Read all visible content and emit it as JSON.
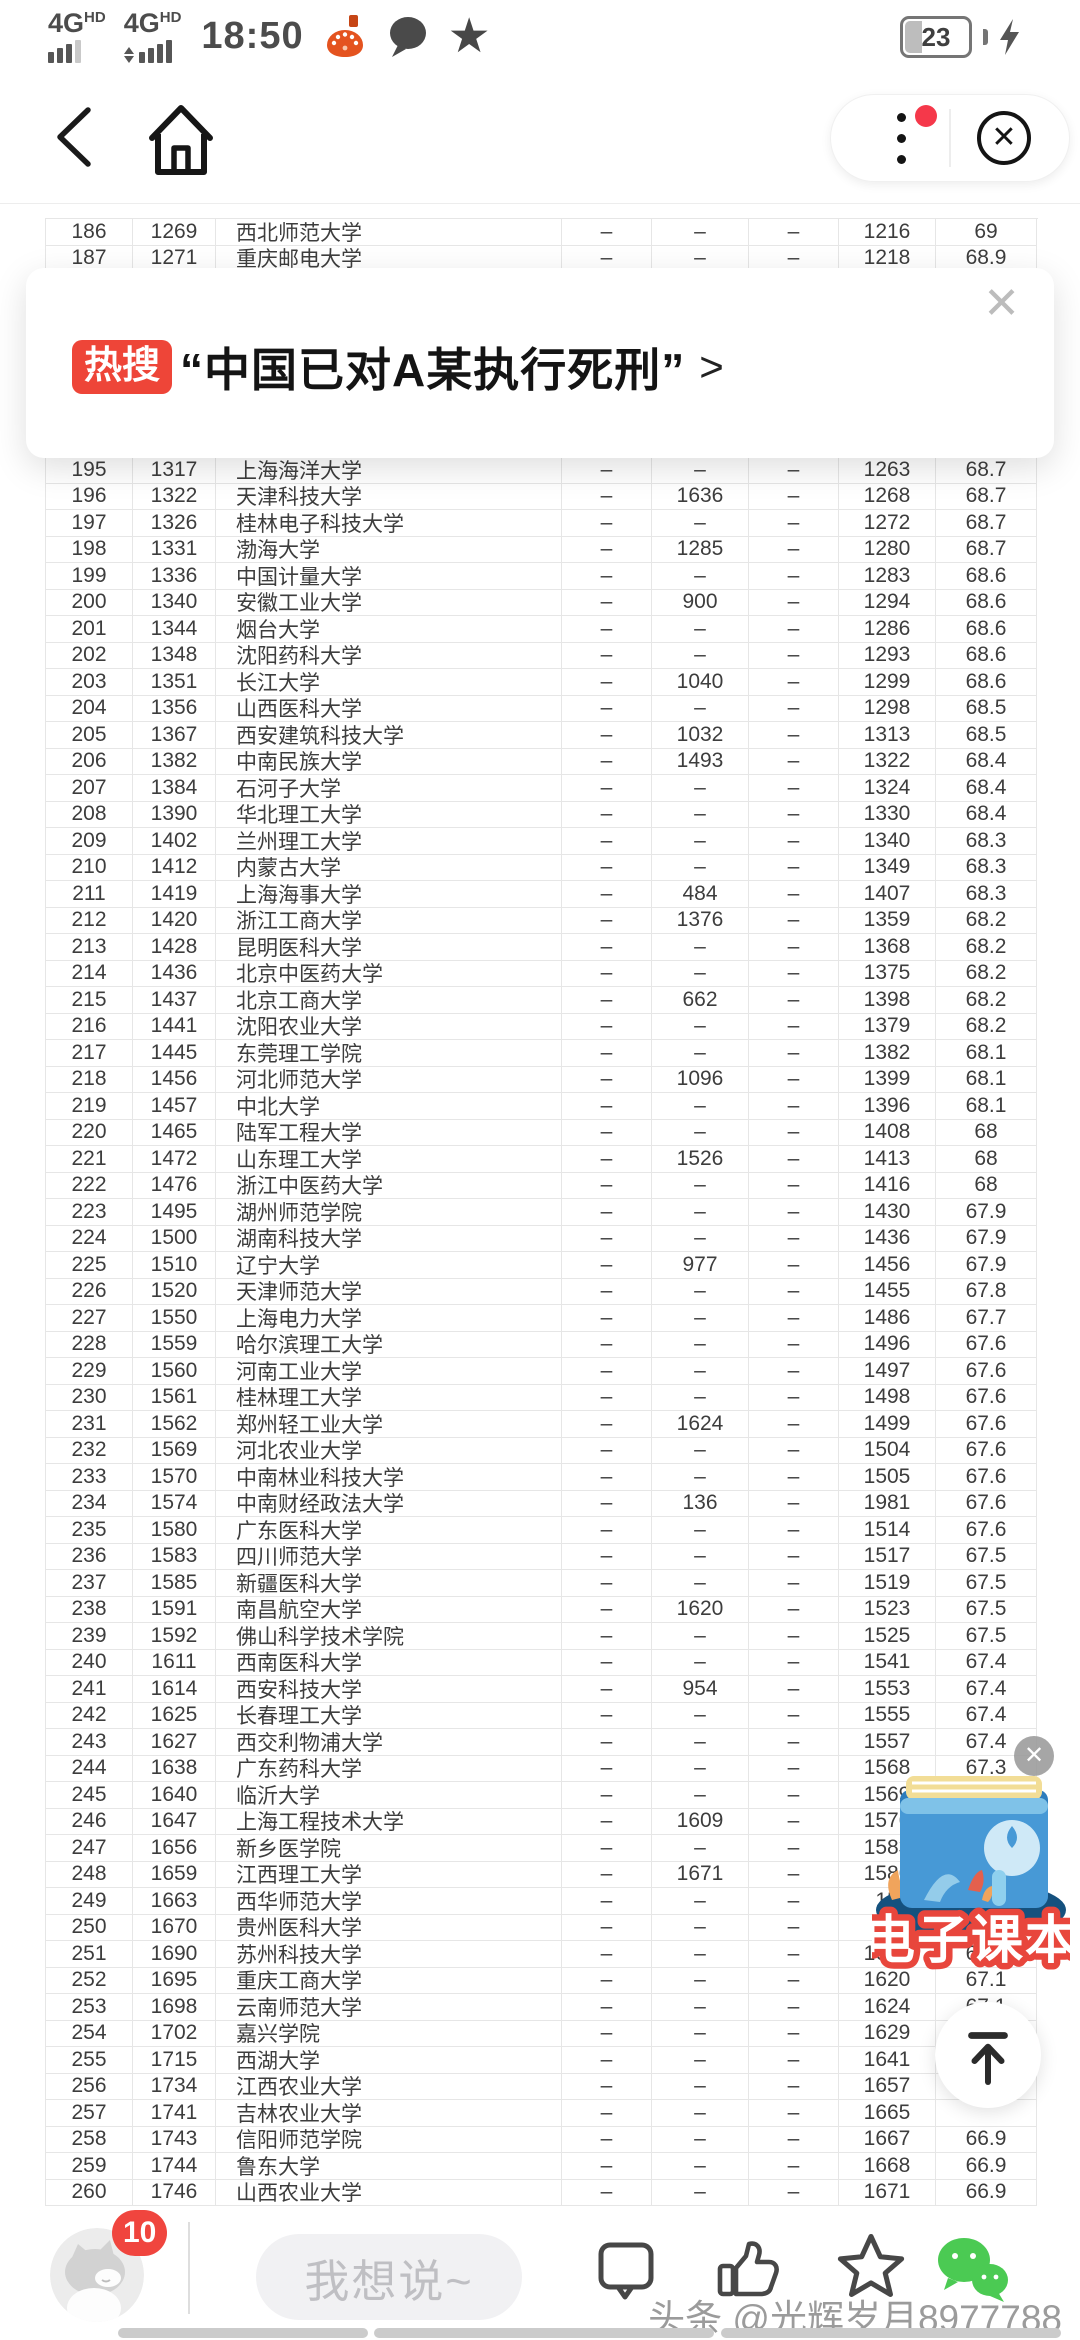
{
  "status_bar": {
    "network1": {
      "label": "4G",
      "sub": "HD"
    },
    "network2": {
      "label": "4G",
      "sub": "HD"
    },
    "time": "18:50",
    "battery_percent": "23"
  },
  "icons": {
    "banner_close": "✕",
    "sticker_close": "✕",
    "pill_close": "✕",
    "star_filled": "★"
  },
  "hot_banner": {
    "badge": "热搜",
    "headline": "“中国已对A某执行死刑”",
    "arrow": ">"
  },
  "sticker": {
    "label": "电子课本"
  },
  "bottom_bar": {
    "badge_count": "10",
    "input_placeholder": "我想说~",
    "watermark": "头条 @光辉岁月8977788"
  },
  "table": {
    "rows_top": [
      [
        "186",
        "1269",
        "西北师范大学",
        "–",
        "–",
        "–",
        "1216",
        "69"
      ],
      [
        "187",
        "1271",
        "重庆邮电大学",
        "–",
        "–",
        "–",
        "1218",
        "68.9"
      ]
    ],
    "rows": [
      [
        "195",
        "1317",
        "上海海洋大学",
        "–",
        "–",
        "–",
        "1263",
        "68.7"
      ],
      [
        "196",
        "1322",
        "天津科技大学",
        "–",
        "1636",
        "–",
        "1268",
        "68.7"
      ],
      [
        "197",
        "1326",
        "桂林电子科技大学",
        "–",
        "–",
        "–",
        "1272",
        "68.7"
      ],
      [
        "198",
        "1331",
        "渤海大学",
        "–",
        "1285",
        "–",
        "1280",
        "68.7"
      ],
      [
        "199",
        "1336",
        "中国计量大学",
        "–",
        "–",
        "–",
        "1283",
        "68.6"
      ],
      [
        "200",
        "1340",
        "安徽工业大学",
        "–",
        "900",
        "–",
        "1294",
        "68.6"
      ],
      [
        "201",
        "1344",
        "烟台大学",
        "–",
        "–",
        "–",
        "1286",
        "68.6"
      ],
      [
        "202",
        "1348",
        "沈阳药科大学",
        "–",
        "–",
        "–",
        "1293",
        "68.6"
      ],
      [
        "203",
        "1351",
        "长江大学",
        "–",
        "1040",
        "–",
        "1299",
        "68.6"
      ],
      [
        "204",
        "1356",
        "山西医科大学",
        "–",
        "–",
        "–",
        "1298",
        "68.5"
      ],
      [
        "205",
        "1367",
        "西安建筑科技大学",
        "–",
        "1032",
        "–",
        "1313",
        "68.5"
      ],
      [
        "206",
        "1382",
        "中南民族大学",
        "–",
        "1493",
        "–",
        "1322",
        "68.4"
      ],
      [
        "207",
        "1384",
        "石河子大学",
        "–",
        "–",
        "–",
        "1324",
        "68.4"
      ],
      [
        "208",
        "1390",
        "华北理工大学",
        "–",
        "–",
        "–",
        "1330",
        "68.4"
      ],
      [
        "209",
        "1402",
        "兰州理工大学",
        "–",
        "–",
        "–",
        "1340",
        "68.3"
      ],
      [
        "210",
        "1412",
        "内蒙古大学",
        "–",
        "–",
        "–",
        "1349",
        "68.3"
      ],
      [
        "211",
        "1419",
        "上海海事大学",
        "–",
        "484",
        "–",
        "1407",
        "68.3"
      ],
      [
        "212",
        "1420",
        "浙江工商大学",
        "–",
        "1376",
        "–",
        "1359",
        "68.2"
      ],
      [
        "213",
        "1428",
        "昆明医科大学",
        "–",
        "–",
        "–",
        "1368",
        "68.2"
      ],
      [
        "214",
        "1436",
        "北京中医药大学",
        "–",
        "–",
        "–",
        "1375",
        "68.2"
      ],
      [
        "215",
        "1437",
        "北京工商大学",
        "–",
        "662",
        "–",
        "1398",
        "68.2"
      ],
      [
        "216",
        "1441",
        "沈阳农业大学",
        "–",
        "–",
        "–",
        "1379",
        "68.2"
      ],
      [
        "217",
        "1445",
        "东莞理工学院",
        "–",
        "–",
        "–",
        "1382",
        "68.1"
      ],
      [
        "218",
        "1456",
        "河北师范大学",
        "–",
        "1096",
        "–",
        "1399",
        "68.1"
      ],
      [
        "219",
        "1457",
        "中北大学",
        "–",
        "–",
        "–",
        "1396",
        "68.1"
      ],
      [
        "220",
        "1465",
        "陆军工程大学",
        "–",
        "–",
        "–",
        "1408",
        "68"
      ],
      [
        "221",
        "1472",
        "山东理工大学",
        "–",
        "1526",
        "–",
        "1413",
        "68"
      ],
      [
        "222",
        "1476",
        "浙江中医药大学",
        "–",
        "–",
        "–",
        "1416",
        "68"
      ],
      [
        "223",
        "1495",
        "湖州师范学院",
        "–",
        "–",
        "–",
        "1430",
        "67.9"
      ],
      [
        "224",
        "1500",
        "湖南科技大学",
        "–",
        "–",
        "–",
        "1436",
        "67.9"
      ],
      [
        "225",
        "1510",
        "辽宁大学",
        "–",
        "977",
        "–",
        "1456",
        "67.9"
      ],
      [
        "226",
        "1520",
        "天津师范大学",
        "–",
        "–",
        "–",
        "1455",
        "67.8"
      ],
      [
        "227",
        "1550",
        "上海电力大学",
        "–",
        "–",
        "–",
        "1486",
        "67.7"
      ],
      [
        "228",
        "1559",
        "哈尔滨理工大学",
        "–",
        "–",
        "–",
        "1496",
        "67.6"
      ],
      [
        "229",
        "1560",
        "河南工业大学",
        "–",
        "–",
        "–",
        "1497",
        "67.6"
      ],
      [
        "230",
        "1561",
        "桂林理工大学",
        "–",
        "–",
        "–",
        "1498",
        "67.6"
      ],
      [
        "231",
        "1562",
        "郑州轻工业大学",
        "–",
        "1624",
        "–",
        "1499",
        "67.6"
      ],
      [
        "232",
        "1569",
        "河北农业大学",
        "–",
        "–",
        "–",
        "1504",
        "67.6"
      ],
      [
        "233",
        "1570",
        "中南林业科技大学",
        "–",
        "–",
        "–",
        "1505",
        "67.6"
      ],
      [
        "234",
        "1574",
        "中南财经政法大学",
        "–",
        "136",
        "–",
        "1981",
        "67.6"
      ],
      [
        "235",
        "1580",
        "广东医科大学",
        "–",
        "–",
        "–",
        "1514",
        "67.6"
      ],
      [
        "236",
        "1583",
        "四川师范大学",
        "–",
        "–",
        "–",
        "1517",
        "67.5"
      ],
      [
        "237",
        "1585",
        "新疆医科大学",
        "–",
        "–",
        "–",
        "1519",
        "67.5"
      ],
      [
        "238",
        "1591",
        "南昌航空大学",
        "–",
        "1620",
        "–",
        "1523",
        "67.5"
      ],
      [
        "239",
        "1592",
        "佛山科学技术学院",
        "–",
        "–",
        "–",
        "1525",
        "67.5"
      ],
      [
        "240",
        "1611",
        "西南医科大学",
        "–",
        "–",
        "–",
        "1541",
        "67.4"
      ],
      [
        "241",
        "1614",
        "西安科技大学",
        "–",
        "954",
        "–",
        "1553",
        "67.4"
      ],
      [
        "242",
        "1625",
        "长春理工大学",
        "–",
        "–",
        "–",
        "1555",
        "67.4"
      ],
      [
        "243",
        "1627",
        "西交利物浦大学",
        "–",
        "–",
        "–",
        "1557",
        "67.4"
      ],
      [
        "244",
        "1638",
        "广东药科大学",
        "–",
        "–",
        "–",
        "1568",
        "67.3"
      ],
      [
        "245",
        "1640",
        "临沂大学",
        "–",
        "–",
        "–",
        "1569",
        ""
      ],
      [
        "246",
        "1647",
        "上海工程技术大学",
        "–",
        "1609",
        "–",
        "1576",
        ""
      ],
      [
        "247",
        "1656",
        "新乡医学院",
        "–",
        "–",
        "–",
        "1583",
        ""
      ],
      [
        "248",
        "1659",
        "江西理工大学",
        "–",
        "1671",
        "–",
        "1586",
        ""
      ],
      [
        "249",
        "1663",
        "西华师范大学",
        "–",
        "–",
        "–",
        "15",
        ""
      ],
      [
        "250",
        "1670",
        "贵州医科大学",
        "–",
        "–",
        "–",
        "15",
        ""
      ],
      [
        "251",
        "1690",
        "苏州科技大学",
        "–",
        "–",
        "–",
        "1615",
        "67.1"
      ],
      [
        "252",
        "1695",
        "重庆工商大学",
        "–",
        "–",
        "–",
        "1620",
        "67.1"
      ],
      [
        "253",
        "1698",
        "云南师范大学",
        "–",
        "–",
        "–",
        "1624",
        "67.1"
      ],
      [
        "254",
        "1702",
        "嘉兴学院",
        "–",
        "–",
        "–",
        "1629",
        ""
      ],
      [
        "255",
        "1715",
        "西湖大学",
        "–",
        "–",
        "–",
        "1641",
        ""
      ],
      [
        "256",
        "1734",
        "江西农业大学",
        "–",
        "–",
        "–",
        "1657",
        ""
      ],
      [
        "257",
        "1741",
        "吉林农业大学",
        "–",
        "–",
        "–",
        "1665",
        ""
      ],
      [
        "258",
        "1743",
        "信阳师范学院",
        "–",
        "–",
        "–",
        "1667",
        "66.9"
      ],
      [
        "259",
        "1744",
        "鲁东大学",
        "–",
        "–",
        "–",
        "1668",
        "66.9"
      ],
      [
        "260",
        "1746",
        "山西农业大学",
        "–",
        "–",
        "–",
        "1671",
        "66.9"
      ]
    ]
  }
}
